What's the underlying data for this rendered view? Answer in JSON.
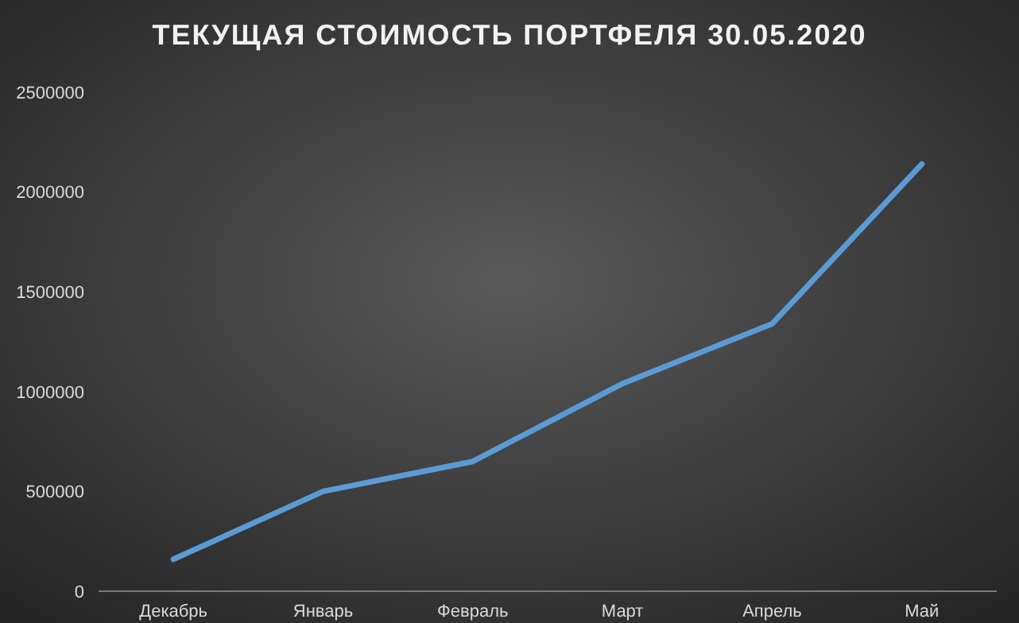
{
  "chart_data": {
    "type": "line",
    "title": "ТЕКУЩАЯ СТОИМОСТЬ ПОРТФЕЛЯ  30.05.2020",
    "categories": [
      "Декабрь",
      "Январь",
      "Февраль",
      "Март",
      "Апрель",
      "Май"
    ],
    "series": [
      {
        "color": "#5b9bd5",
        "values": [
          160000,
          500000,
          650000,
          1040000,
          1340000,
          2140000
        ]
      }
    ],
    "ylim": [
      0,
      2500000
    ],
    "yticks": [
      0,
      500000,
      1000000,
      1500000,
      2000000,
      2500000
    ],
    "grid": false,
    "marker": "none",
    "line_style": "solid"
  }
}
